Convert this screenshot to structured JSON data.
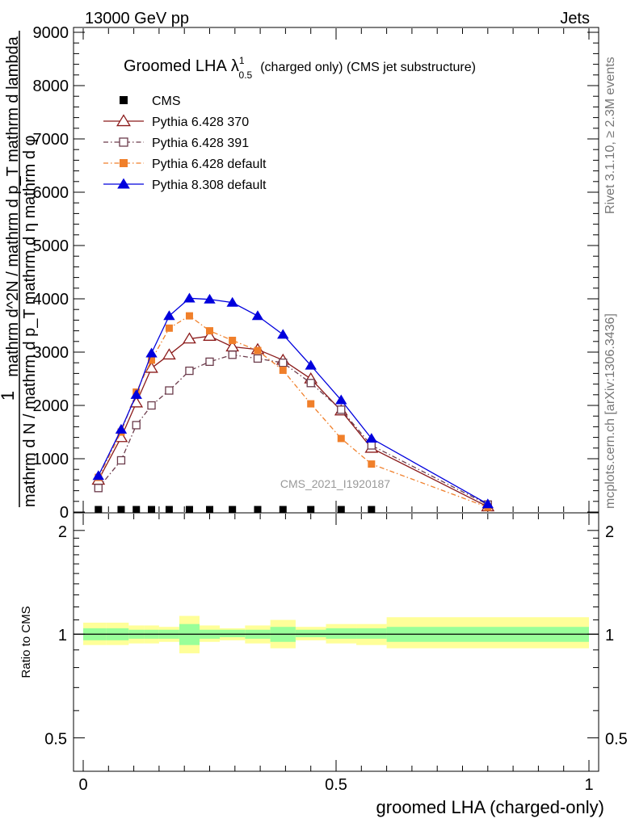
{
  "header": {
    "left": "13000 GeV pp",
    "right": "Jets"
  },
  "side_labels": {
    "rivet": "Rivet 3.1.10, ≥ 2.3M events",
    "mcplots": "mcplots.cern.ch [arXiv:1306.3436]"
  },
  "chart_data": [
    {
      "type": "line",
      "title": "Groomed LHA",
      "title_symbol": "λ",
      "title_sup": "1",
      "title_sub": "0.5",
      "title_suffix": "(charged only) (CMS jet substructure)",
      "watermark": "CMS_2021_I1920187",
      "ylabel_numer": "1",
      "ylabel_denom": "mathrm d N / mathrm d p_T mathrm d η mathrm d φ",
      "ylabel_right": "mathrm d^2N / mathrm d p_T mathrm d lambda",
      "xlim": [
        0,
        1
      ],
      "ylim": [
        0,
        9000
      ],
      "yticks": [
        0,
        1000,
        2000,
        3000,
        4000,
        5000,
        6000,
        7000,
        8000,
        9000
      ],
      "ytick_labels": [
        "0",
        "1000",
        "2000",
        "3000",
        "4000",
        "5000",
        "6000",
        "7000",
        "8000",
        "9000"
      ],
      "legend_position": "top-left",
      "series": [
        {
          "name": "CMS",
          "color": "#000000",
          "marker": "square-filled",
          "line": "none",
          "x": [
            0.03,
            0.075,
            0.105,
            0.135,
            0.17,
            0.21,
            0.25,
            0.295,
            0.345,
            0.395,
            0.45,
            0.51,
            0.57
          ],
          "y": [
            3,
            3,
            3,
            3,
            3,
            3,
            3,
            3,
            3,
            3,
            3,
            3,
            3
          ]
        },
        {
          "name": "Pythia 6.428 370",
          "color": "#8b1a1a",
          "marker": "triangle-open",
          "line": "solid",
          "x": [
            0.03,
            0.075,
            0.105,
            0.135,
            0.17,
            0.21,
            0.25,
            0.295,
            0.345,
            0.395,
            0.45,
            0.51,
            0.57,
            0.8
          ],
          "y": [
            600,
            1400,
            2050,
            2700,
            2950,
            3250,
            3300,
            3100,
            3050,
            2850,
            2500,
            1900,
            1200,
            100
          ]
        },
        {
          "name": "Pythia 6.428 391",
          "color": "#6b3b4b",
          "marker": "square-open",
          "line": "dashdot",
          "x": [
            0.03,
            0.075,
            0.105,
            0.135,
            0.17,
            0.21,
            0.25,
            0.295,
            0.345,
            0.395,
            0.45,
            0.51,
            0.57,
            0.8
          ],
          "y": [
            450,
            970,
            1630,
            2000,
            2280,
            2650,
            2820,
            2950,
            2880,
            2800,
            2420,
            1920,
            1250,
            140
          ]
        },
        {
          "name": "Pythia 6.428 default",
          "color": "#f07f2a",
          "marker": "square-filled",
          "line": "dashdot",
          "x": [
            0.03,
            0.075,
            0.105,
            0.135,
            0.17,
            0.21,
            0.25,
            0.295,
            0.345,
            0.395,
            0.45,
            0.51,
            0.57,
            0.8
          ],
          "y": [
            650,
            1500,
            2250,
            2850,
            3450,
            3680,
            3400,
            3220,
            3030,
            2660,
            2030,
            1380,
            900,
            90
          ]
        },
        {
          "name": "Pythia 8.308 default",
          "color": "#0000dd",
          "marker": "triangle-filled",
          "line": "solid",
          "x": [
            0.03,
            0.075,
            0.105,
            0.135,
            0.17,
            0.21,
            0.25,
            0.295,
            0.345,
            0.395,
            0.45,
            0.51,
            0.57,
            0.8
          ],
          "y": [
            680,
            1550,
            2200,
            2980,
            3680,
            4010,
            3990,
            3930,
            3680,
            3330,
            2750,
            2100,
            1380,
            150
          ]
        }
      ]
    },
    {
      "type": "area",
      "ylabel": "Ratio to CMS",
      "xlabel": "groomed LHA (charged-only)",
      "xlim": [
        0,
        1
      ],
      "ylim": [
        0.4,
        2.25
      ],
      "log_y": true,
      "yticks": [
        0.5,
        1,
        2
      ],
      "ytick_labels": [
        "0.5",
        "1",
        "2"
      ],
      "xticks": [
        0,
        0.5,
        1
      ],
      "xtick_labels": [
        "0",
        "0.5",
        "1"
      ],
      "bins": [
        {
          "x0": 0.0,
          "x1": 0.045,
          "stat": [
            0.96,
            1.04
          ],
          "total": [
            0.93,
            1.08
          ]
        },
        {
          "x0": 0.045,
          "x1": 0.09,
          "stat": [
            0.96,
            1.04
          ],
          "total": [
            0.93,
            1.08
          ]
        },
        {
          "x0": 0.09,
          "x1": 0.12,
          "stat": [
            0.97,
            1.03
          ],
          "total": [
            0.94,
            1.06
          ]
        },
        {
          "x0": 0.12,
          "x1": 0.15,
          "stat": [
            0.97,
            1.03
          ],
          "total": [
            0.94,
            1.06
          ]
        },
        {
          "x0": 0.15,
          "x1": 0.19,
          "stat": [
            0.97,
            1.03
          ],
          "total": [
            0.95,
            1.05
          ]
        },
        {
          "x0": 0.19,
          "x1": 0.23,
          "stat": [
            0.93,
            1.07
          ],
          "total": [
            0.88,
            1.13
          ]
        },
        {
          "x0": 0.23,
          "x1": 0.27,
          "stat": [
            0.97,
            1.03
          ],
          "total": [
            0.95,
            1.06
          ]
        },
        {
          "x0": 0.27,
          "x1": 0.32,
          "stat": [
            0.98,
            1.03
          ],
          "total": [
            0.96,
            1.04
          ]
        },
        {
          "x0": 0.32,
          "x1": 0.37,
          "stat": [
            0.97,
            1.03
          ],
          "total": [
            0.94,
            1.06
          ]
        },
        {
          "x0": 0.37,
          "x1": 0.42,
          "stat": [
            0.95,
            1.05
          ],
          "total": [
            0.91,
            1.1
          ]
        },
        {
          "x0": 0.42,
          "x1": 0.48,
          "stat": [
            0.98,
            1.03
          ],
          "total": [
            0.96,
            1.05
          ]
        },
        {
          "x0": 0.48,
          "x1": 0.54,
          "stat": [
            0.97,
            1.04
          ],
          "total": [
            0.94,
            1.07
          ]
        },
        {
          "x0": 0.54,
          "x1": 0.6,
          "stat": [
            0.97,
            1.04
          ],
          "total": [
            0.93,
            1.07
          ]
        },
        {
          "x0": 0.6,
          "x1": 1.0,
          "stat": [
            0.95,
            1.05
          ],
          "total": [
            0.91,
            1.12
          ]
        }
      ],
      "colors": {
        "stat": "#99ff99",
        "total": "#ffff99"
      }
    }
  ]
}
